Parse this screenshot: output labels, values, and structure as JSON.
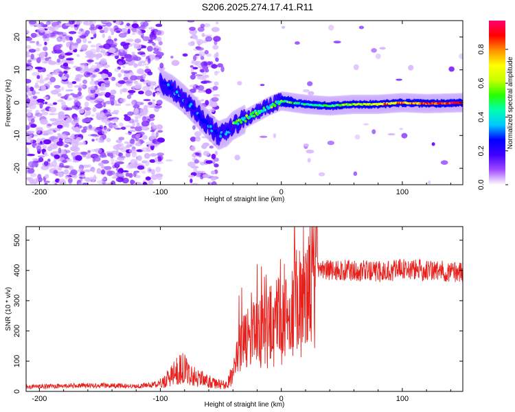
{
  "title": "S206.2025.274.17.41.R11",
  "chart_data": [
    {
      "type": "heatmap",
      "title": "S206.2025.274.17.41.R11",
      "xlabel": "Height of straight line (km)",
      "ylabel": "Frequency (Hz)",
      "xlim": [
        -211,
        150
      ],
      "ylim": [
        -25,
        25
      ],
      "xticks": [
        -200,
        -100,
        0,
        100
      ],
      "yticks": [
        -20,
        -10,
        0,
        10,
        20
      ],
      "colorbar": {
        "label": "Normalized spectral amplitude",
        "range": [
          0.0,
          0.97
        ],
        "ticks": [
          0.0,
          0.2,
          0.4,
          0.6,
          0.8
        ],
        "tick_labels": [
          "0.0",
          "0.2",
          "0.4",
          "0.6",
          "0.8"
        ],
        "colormap": [
          "#ffffff",
          "#a24bff",
          "#4000ff",
          "#0000ff",
          "#00c8ff",
          "#00ffb0",
          "#28ff00",
          "#c8ff00",
          "#ffff00",
          "#ff9000",
          "#ff0000",
          "#ff0070"
        ]
      },
      "signal_track": {
        "x": [
          -100,
          -90,
          -80,
          -70,
          -60,
          -52,
          -45,
          -40,
          -30,
          -20,
          -10,
          0,
          10,
          20,
          40,
          60,
          80,
          100,
          120,
          150
        ],
        "freq": [
          6,
          4,
          1,
          -3,
          -7,
          -10,
          -9,
          -7,
          -5,
          -3,
          -1,
          0.5,
          0,
          -0.5,
          -1,
          -0.5,
          -0.5,
          0,
          -0.3,
          0
        ]
      }
    },
    {
      "type": "line",
      "xlabel": "Height of straight line (km)",
      "ylabel": "SNR (10 * v/v)",
      "xlim": [
        -211,
        150
      ],
      "ylim": [
        0,
        545
      ],
      "xticks": [
        -200,
        -100,
        0,
        100
      ],
      "yticks": [
        0,
        100,
        200,
        300,
        400,
        500
      ],
      "series": [
        {
          "name": "SNR",
          "color": "#e8201c",
          "x": [
            -211,
            -180,
            -150,
            -120,
            -100,
            -90,
            -82,
            -75,
            -65,
            -55,
            -45,
            -40,
            -35,
            -30,
            -25,
            -20,
            -15,
            -10,
            -5,
            0,
            5,
            10,
            15,
            20,
            25,
            30,
            35,
            40,
            60,
            80,
            100,
            120,
            150
          ],
          "y": [
            15,
            18,
            20,
            17,
            25,
            55,
            80,
            55,
            40,
            25,
            22,
            60,
            140,
            170,
            185,
            200,
            210,
            230,
            240,
            250,
            265,
            300,
            320,
            330,
            365,
            410,
            405,
            400,
            400,
            395,
            405,
            400,
            395
          ]
        }
      ]
    }
  ]
}
